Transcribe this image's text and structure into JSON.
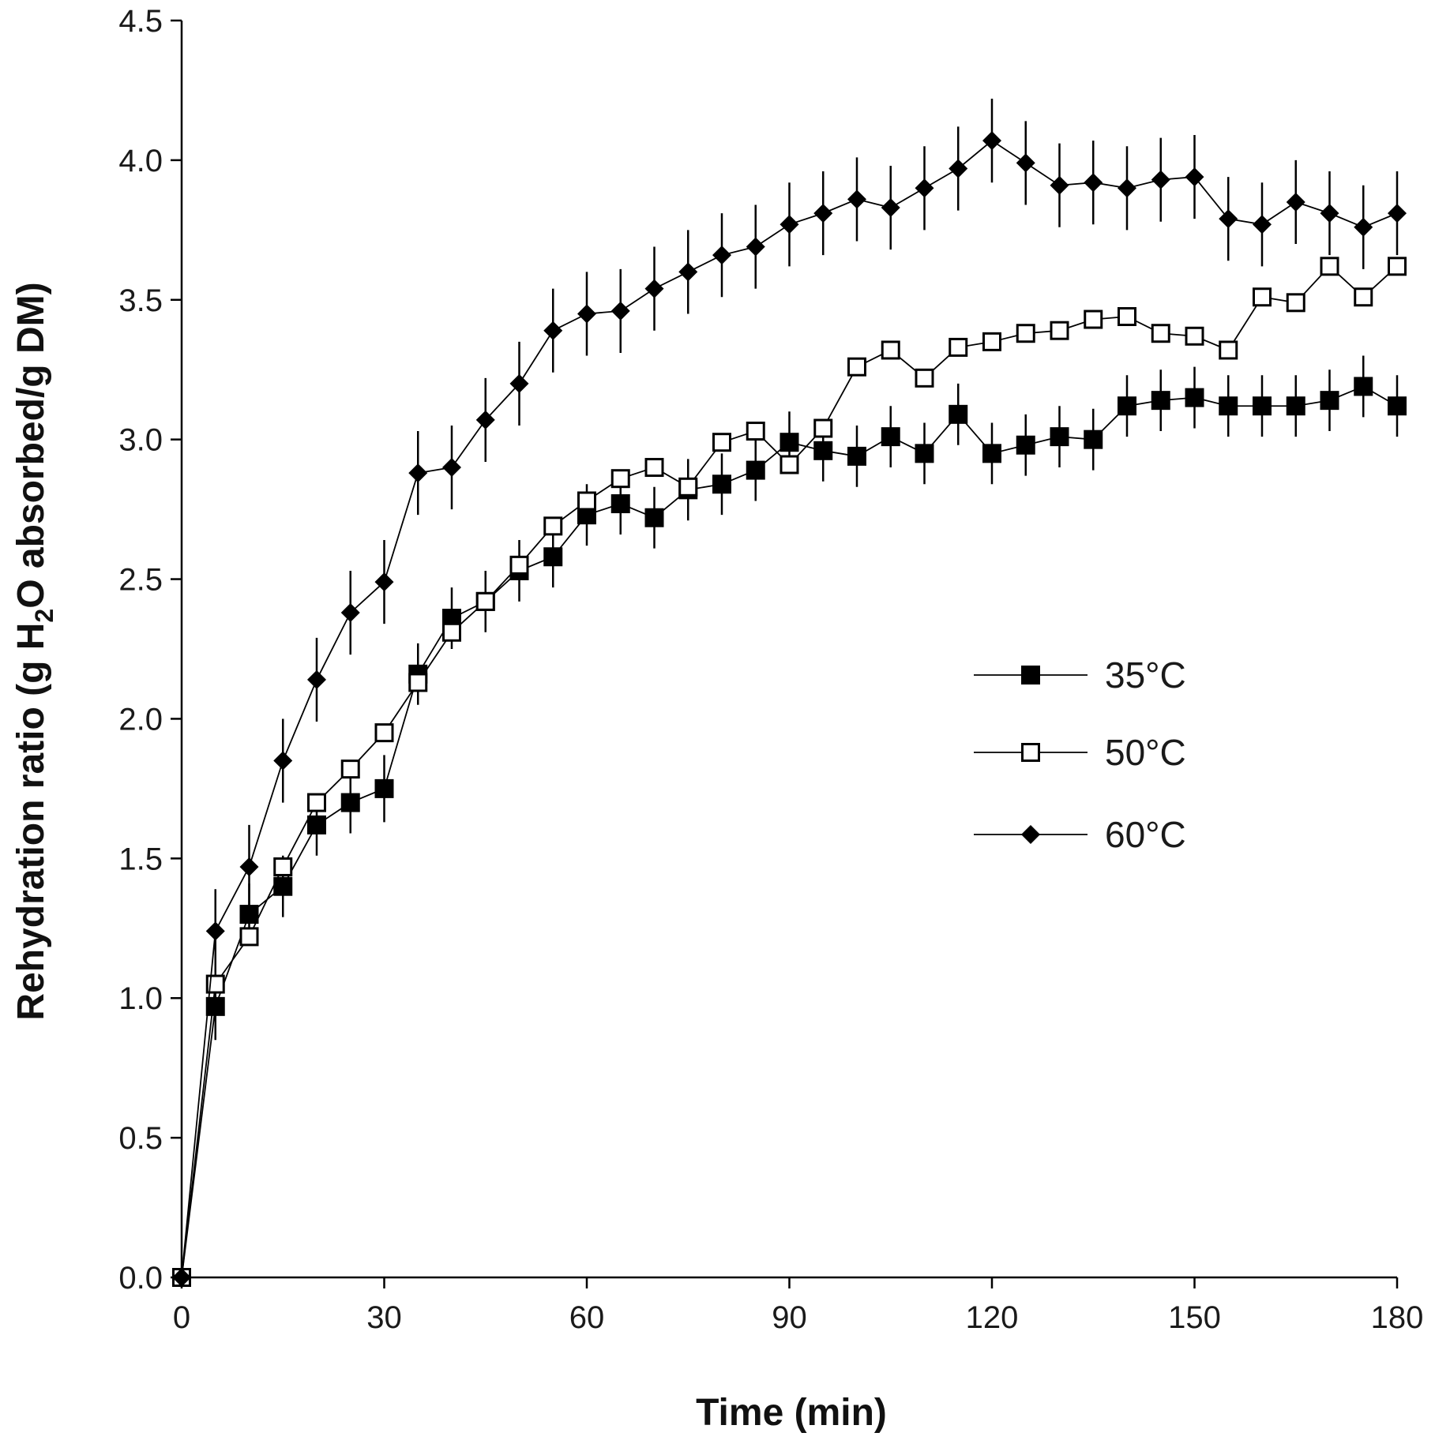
{
  "chart_data": {
    "type": "line",
    "xlabel": "Time (min)",
    "ylabel": "Rehydration ratio  (g H2O absorbed/g DM)",
    "ylabel_parts": {
      "pre": "Rehydration ratio  (g H",
      "sub": "2",
      "post": "O absorbed/g DM)"
    },
    "xlim": [
      0,
      180
    ],
    "ylim": [
      0,
      4.5
    ],
    "xticks": [
      "0",
      "30",
      "60",
      "90",
      "120",
      "150",
      "180"
    ],
    "yticks": [
      "0.0",
      "0.5",
      "1.0",
      "1.5",
      "2.0",
      "2.5",
      "3.0",
      "3.5",
      "4.0",
      "4.5"
    ],
    "xtick_values": [
      0,
      30,
      60,
      90,
      120,
      150,
      180
    ],
    "ytick_values": [
      0,
      0.5,
      1.0,
      1.5,
      2.0,
      2.5,
      3.0,
      3.5,
      4.0,
      4.5
    ],
    "x": [
      0,
      5,
      10,
      15,
      20,
      25,
      30,
      35,
      40,
      45,
      50,
      55,
      60,
      65,
      70,
      75,
      80,
      85,
      90,
      95,
      100,
      105,
      110,
      115,
      120,
      125,
      130,
      135,
      140,
      145,
      150,
      155,
      160,
      165,
      170,
      175,
      180
    ],
    "grid": false,
    "legend_position": "center-right",
    "series": [
      {
        "name": "35°C",
        "marker": "filled-square",
        "values": [
          0,
          0.97,
          1.3,
          1.4,
          1.62,
          1.7,
          1.75,
          2.16,
          2.36,
          2.42,
          2.53,
          2.58,
          2.73,
          2.77,
          2.72,
          2.82,
          2.84,
          2.89,
          2.99,
          2.96,
          2.94,
          3.01,
          2.95,
          3.09,
          2.95,
          2.98,
          3.01,
          3.0,
          3.12,
          3.14,
          3.15,
          3.12,
          3.12,
          3.12,
          3.14,
          3.19,
          3.12
        ],
        "errors": [
          0,
          0.12,
          0.11,
          0.11,
          0.11,
          0.11,
          0.12,
          0.11,
          0.11,
          0.11,
          0.11,
          0.11,
          0.11,
          0.11,
          0.11,
          0.11,
          0.11,
          0.11,
          0.11,
          0.11,
          0.11,
          0.11,
          0.11,
          0.11,
          0.11,
          0.11,
          0.11,
          0.11,
          0.11,
          0.11,
          0.11,
          0.11,
          0.11,
          0.11,
          0.11,
          0.11,
          0.11
        ]
      },
      {
        "name": "50°C",
        "marker": "open-square",
        "values": [
          0,
          1.05,
          1.22,
          1.47,
          1.7,
          1.82,
          1.95,
          2.13,
          2.31,
          2.42,
          2.55,
          2.69,
          2.78,
          2.86,
          2.9,
          2.83,
          2.99,
          3.03,
          2.91,
          3.04,
          3.26,
          3.32,
          3.22,
          3.33,
          3.35,
          3.38,
          3.39,
          3.43,
          3.44,
          3.38,
          3.37,
          3.32,
          3.51,
          3.49,
          3.62,
          3.51,
          3.62
        ]
      },
      {
        "name": "60°C",
        "marker": "filled-diamond",
        "values": [
          0,
          1.24,
          1.47,
          1.85,
          2.14,
          2.38,
          2.49,
          2.88,
          2.9,
          3.07,
          3.2,
          3.39,
          3.45,
          3.46,
          3.54,
          3.6,
          3.66,
          3.69,
          3.77,
          3.81,
          3.86,
          3.83,
          3.9,
          3.97,
          4.07,
          3.99,
          3.91,
          3.92,
          3.9,
          3.93,
          3.94,
          3.79,
          3.77,
          3.85,
          3.81,
          3.76,
          3.81
        ],
        "errors": [
          0,
          0.15,
          0.15,
          0.15,
          0.15,
          0.15,
          0.15,
          0.15,
          0.15,
          0.15,
          0.15,
          0.15,
          0.15,
          0.15,
          0.15,
          0.15,
          0.15,
          0.15,
          0.15,
          0.15,
          0.15,
          0.15,
          0.15,
          0.15,
          0.15,
          0.15,
          0.15,
          0.15,
          0.15,
          0.15,
          0.15,
          0.15,
          0.15,
          0.15,
          0.15,
          0.15,
          0.15
        ]
      }
    ]
  }
}
